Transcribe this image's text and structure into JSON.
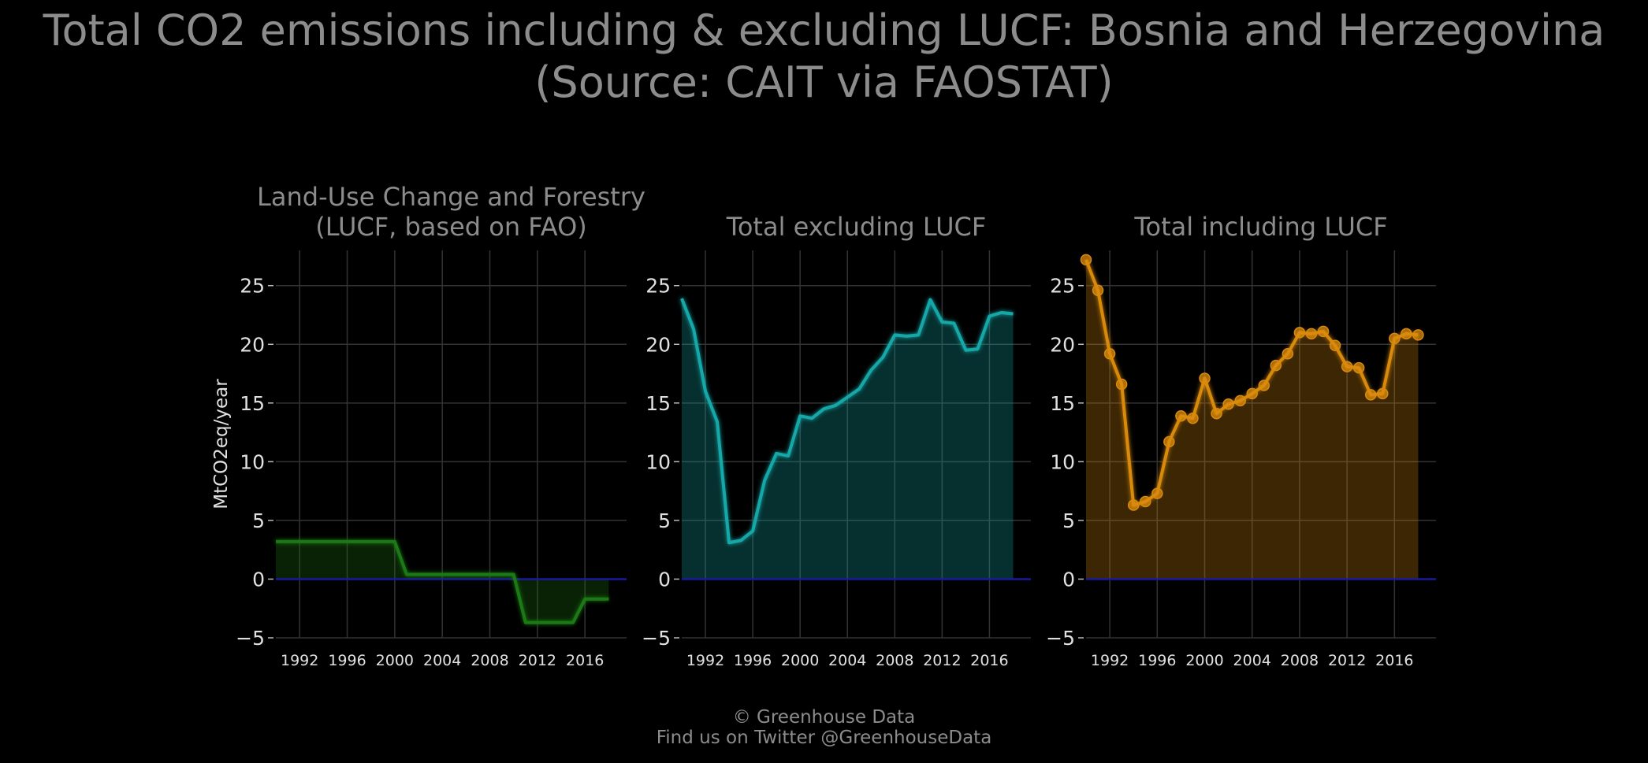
{
  "title_line1": "Total CO2 emissions including & excluding LUCF: Bosnia and Herzegovina",
  "title_line2": "(Source: CAIT via FAOSTAT)",
  "footer_line1": "© Greenhouse Data",
  "footer_line2": "Find us on Twitter @GreenhouseData",
  "colors": {
    "background": "#000000",
    "grid": "#333333",
    "text": "#8c8c8c",
    "tick_text": "#e0e0e0",
    "zero_line": "#1a1aa0",
    "lucf": "#1f7a12",
    "excl": "#17a8a8",
    "incl": "#d98a0c"
  },
  "chart_data": [
    {
      "type": "area",
      "title": "Land-Use Change and Forestry\n(LUCF, based on FAO)",
      "ylabel": "MtCO2eq/year",
      "xlim": [
        1990,
        2019.5
      ],
      "ylim": [
        -5,
        28
      ],
      "x_ticks": [
        1992,
        1996,
        2000,
        2004,
        2008,
        2012,
        2016
      ],
      "y_ticks": [
        -5,
        0,
        5,
        10,
        15,
        20,
        25
      ],
      "y_tick_labels": [
        "−5",
        "0",
        "5",
        "10",
        "15",
        "20",
        "25"
      ],
      "grid": true,
      "color_key": "lucf",
      "markers": false,
      "x": [
        1990,
        1991,
        1992,
        1993,
        1994,
        1995,
        1996,
        1997,
        1998,
        1999,
        2000,
        2001,
        2002,
        2003,
        2004,
        2005,
        2006,
        2007,
        2008,
        2009,
        2010,
        2011,
        2012,
        2013,
        2014,
        2015,
        2016,
        2017,
        2018
      ],
      "values": [
        3.2,
        3.2,
        3.2,
        3.2,
        3.2,
        3.2,
        3.2,
        3.2,
        3.2,
        3.2,
        3.2,
        0.4,
        0.4,
        0.4,
        0.4,
        0.4,
        0.4,
        0.4,
        0.4,
        0.4,
        0.4,
        -3.7,
        -3.7,
        -3.7,
        -3.7,
        -3.7,
        -1.7,
        -1.7,
        -1.7
      ]
    },
    {
      "type": "area",
      "title": "Total excluding LUCF",
      "ylabel": "",
      "xlim": [
        1990,
        2019.5
      ],
      "ylim": [
        -5,
        28
      ],
      "x_ticks": [
        1992,
        1996,
        2000,
        2004,
        2008,
        2012,
        2016
      ],
      "y_ticks": [
        -5,
        0,
        5,
        10,
        15,
        20,
        25
      ],
      "y_tick_labels": [
        "−5",
        "0",
        "5",
        "10",
        "15",
        "20",
        "25"
      ],
      "grid": true,
      "color_key": "excl",
      "markers": false,
      "x": [
        1990,
        1991,
        1992,
        1993,
        1994,
        1995,
        1996,
        1997,
        1998,
        1999,
        2000,
        2001,
        2002,
        2003,
        2004,
        2005,
        2006,
        2007,
        2008,
        2009,
        2010,
        2011,
        2012,
        2013,
        2014,
        2015,
        2016,
        2017,
        2018
      ],
      "values": [
        23.9,
        21.3,
        16.0,
        13.4,
        3.1,
        3.3,
        4.1,
        8.4,
        10.7,
        10.5,
        13.9,
        13.7,
        14.5,
        14.8,
        15.5,
        16.2,
        17.8,
        18.9,
        20.8,
        20.7,
        20.8,
        23.8,
        21.9,
        21.8,
        19.5,
        19.6,
        22.4,
        22.7,
        22.6
      ]
    },
    {
      "type": "area",
      "title": "Total including LUCF",
      "ylabel": "",
      "xlim": [
        1990,
        2019.5
      ],
      "ylim": [
        -5,
        28
      ],
      "x_ticks": [
        1992,
        1996,
        2000,
        2004,
        2008,
        2012,
        2016
      ],
      "y_ticks": [
        -5,
        0,
        5,
        10,
        15,
        20,
        25
      ],
      "y_tick_labels": [
        "−5",
        "0",
        "5",
        "10",
        "15",
        "20",
        "25"
      ],
      "grid": true,
      "color_key": "incl",
      "markers": true,
      "x": [
        1990,
        1991,
        1992,
        1993,
        1994,
        1995,
        1996,
        1997,
        1998,
        1999,
        2000,
        2001,
        2002,
        2003,
        2004,
        2005,
        2006,
        2007,
        2008,
        2009,
        2010,
        2011,
        2012,
        2013,
        2014,
        2015,
        2016,
        2017,
        2018
      ],
      "values": [
        27.2,
        24.6,
        19.2,
        16.6,
        6.3,
        6.6,
        7.3,
        11.7,
        13.9,
        13.7,
        17.1,
        14.1,
        14.9,
        15.2,
        15.8,
        16.5,
        18.2,
        19.2,
        21.0,
        20.9,
        21.1,
        19.9,
        18.1,
        18.0,
        15.7,
        15.8,
        20.5,
        20.9,
        20.8
      ]
    }
  ]
}
